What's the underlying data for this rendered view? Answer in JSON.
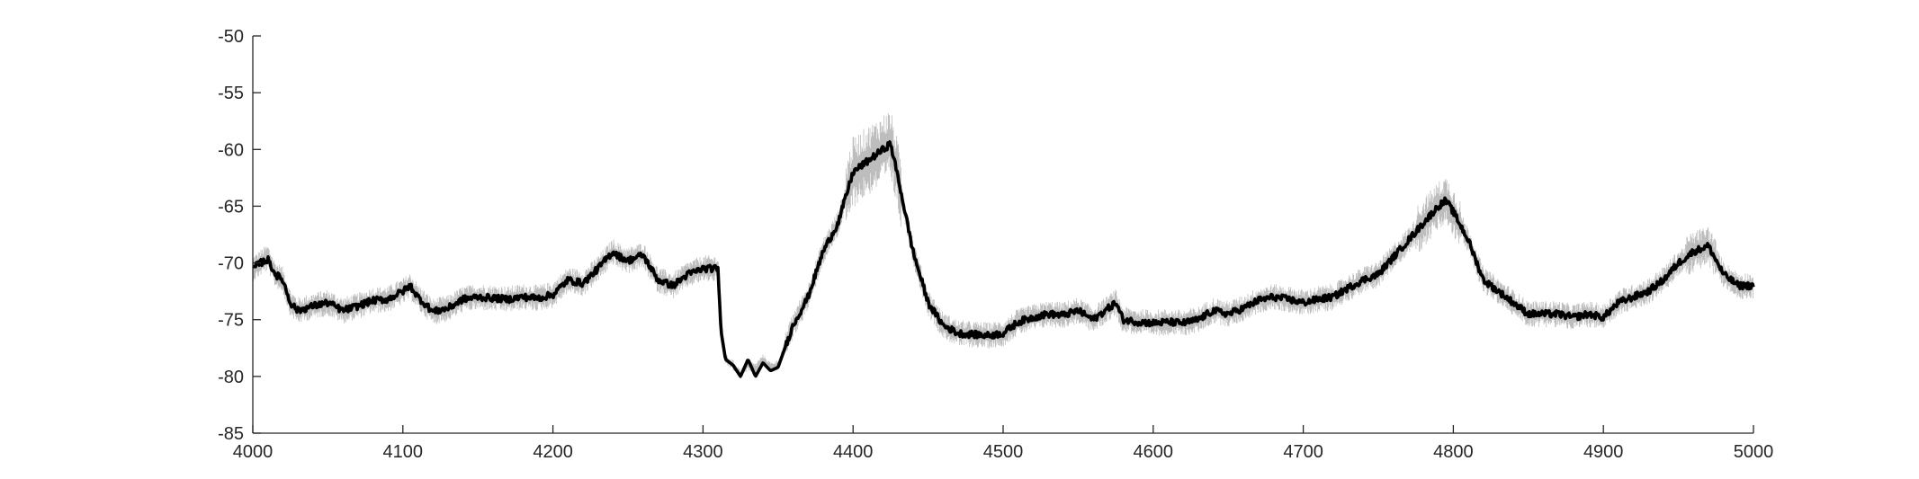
{
  "chart_data": {
    "type": "line",
    "title": "",
    "xlabel": "",
    "ylabel": "",
    "xlim": [
      4000,
      5000
    ],
    "ylim": [
      -85,
      -50
    ],
    "x_ticks": [
      4000,
      4100,
      4200,
      4300,
      4400,
      4500,
      4600,
      4700,
      4800,
      4900,
      5000
    ],
    "y_ticks": [
      -50,
      -55,
      -60,
      -65,
      -70,
      -75,
      -80,
      -85
    ],
    "x_tick_labels": [
      "4000",
      "4100",
      "4200",
      "4300",
      "4400",
      "4500",
      "4600",
      "4700",
      "4800",
      "4900",
      "5000"
    ],
    "y_tick_labels": [
      "-50",
      "-55",
      "-60",
      "-65",
      "-70",
      "-75",
      "-80",
      "-85"
    ],
    "grid": false,
    "series": [
      {
        "role": "raw",
        "color": "#bdbdbd",
        "x": [
          4000,
          4005,
          4010,
          4015,
          4020,
          4025,
          4030,
          4040,
          4050,
          4060,
          4070,
          4080,
          4090,
          4100,
          4105,
          4110,
          4120,
          4130,
          4140,
          4150,
          4160,
          4170,
          4180,
          4190,
          4200,
          4210,
          4220,
          4230,
          4240,
          4245,
          4250,
          4260,
          4270,
          4280,
          4290,
          4300,
          4310,
          4312,
          4315,
          4320,
          4325,
          4330,
          4335,
          4340,
          4345,
          4350,
          4360,
          4370,
          4380,
          4390,
          4400,
          4410,
          4420,
          4425,
          4430,
          4440,
          4450,
          4460,
          4470,
          4480,
          4490,
          4500,
          4510,
          4520,
          4530,
          4540,
          4550,
          4560,
          4570,
          4575,
          4580,
          4590,
          4600,
          4610,
          4620,
          4630,
          4640,
          4650,
          4660,
          4670,
          4680,
          4690,
          4700,
          4710,
          4720,
          4730,
          4740,
          4750,
          4760,
          4770,
          4780,
          4790,
          4795,
          4800,
          4810,
          4820,
          4830,
          4840,
          4850,
          4860,
          4870,
          4880,
          4890,
          4900,
          4910,
          4920,
          4930,
          4940,
          4950,
          4960,
          4970,
          4980,
          4990,
          5000
        ],
        "y": [
          -70.5,
          -70.0,
          -69.5,
          -71.0,
          -71.5,
          -73.5,
          -74.2,
          -73.8,
          -73.5,
          -74.2,
          -73.8,
          -73.3,
          -73.2,
          -72.5,
          -72.0,
          -73.0,
          -74.3,
          -74.0,
          -73.2,
          -73.0,
          -73.1,
          -73.2,
          -73.0,
          -73.1,
          -72.8,
          -71.5,
          -71.8,
          -70.5,
          -69.0,
          -69.5,
          -69.8,
          -69.3,
          -71.5,
          -72.0,
          -71.0,
          -70.5,
          -70.5,
          -76.0,
          -78.5,
          -79.0,
          -79.8,
          -79.0,
          -79.3,
          -78.5,
          -79.2,
          -79.0,
          -75.5,
          -73.0,
          -69.0,
          -66.5,
          -62.0,
          -61.0,
          -60.0,
          -59.5,
          -62.5,
          -69.0,
          -73.5,
          -75.5,
          -76.2,
          -76.3,
          -76.4,
          -76.2,
          -75.2,
          -74.8,
          -74.5,
          -74.6,
          -74.2,
          -75.0,
          -74.0,
          -73.5,
          -75.0,
          -75.2,
          -75.3,
          -75.2,
          -75.3,
          -75.0,
          -74.2,
          -74.5,
          -74.0,
          -73.3,
          -73.0,
          -73.2,
          -73.5,
          -73.2,
          -73.0,
          -72.2,
          -71.5,
          -71.0,
          -69.5,
          -68.0,
          -66.5,
          -65.0,
          -64.5,
          -65.5,
          -68.0,
          -71.5,
          -72.5,
          -73.5,
          -74.5,
          -74.5,
          -74.5,
          -74.8,
          -74.5,
          -74.8,
          -73.5,
          -73.0,
          -72.5,
          -71.5,
          -70.0,
          -69.0,
          -68.5,
          -71.0,
          -72.0,
          -72.0
        ]
      },
      {
        "role": "smoothed",
        "color": "#000000",
        "x": [
          4000,
          4005,
          4010,
          4015,
          4020,
          4025,
          4030,
          4040,
          4050,
          4060,
          4070,
          4080,
          4090,
          4100,
          4105,
          4110,
          4120,
          4130,
          4140,
          4150,
          4160,
          4170,
          4180,
          4190,
          4200,
          4210,
          4220,
          4230,
          4240,
          4245,
          4250,
          4260,
          4270,
          4280,
          4290,
          4300,
          4310,
          4312,
          4315,
          4320,
          4325,
          4330,
          4335,
          4340,
          4345,
          4350,
          4360,
          4370,
          4380,
          4390,
          4400,
          4410,
          4420,
          4425,
          4430,
          4440,
          4450,
          4460,
          4470,
          4480,
          4490,
          4500,
          4510,
          4520,
          4530,
          4540,
          4550,
          4560,
          4570,
          4575,
          4580,
          4590,
          4600,
          4610,
          4620,
          4630,
          4640,
          4650,
          4660,
          4670,
          4680,
          4690,
          4700,
          4710,
          4720,
          4730,
          4740,
          4750,
          4760,
          4770,
          4780,
          4790,
          4795,
          4800,
          4810,
          4820,
          4830,
          4840,
          4850,
          4860,
          4870,
          4880,
          4890,
          4900,
          4910,
          4920,
          4930,
          4940,
          4950,
          4960,
          4970,
          4980,
          4990,
          5000
        ],
        "y": [
          -70.5,
          -70.0,
          -69.7,
          -71.0,
          -71.5,
          -73.5,
          -74.2,
          -73.8,
          -73.5,
          -74.2,
          -73.8,
          -73.3,
          -73.2,
          -72.5,
          -72.0,
          -73.0,
          -74.3,
          -74.0,
          -73.2,
          -73.0,
          -73.1,
          -73.2,
          -73.0,
          -73.1,
          -72.8,
          -71.5,
          -71.8,
          -70.5,
          -69.0,
          -69.5,
          -69.8,
          -69.3,
          -71.5,
          -72.0,
          -71.0,
          -70.5,
          -70.5,
          -76.0,
          -78.5,
          -79.0,
          -80.0,
          -78.5,
          -80.0,
          -78.8,
          -79.5,
          -79.2,
          -75.5,
          -73.0,
          -69.0,
          -66.5,
          -62.0,
          -61.0,
          -60.0,
          -59.5,
          -62.5,
          -69.0,
          -73.5,
          -75.5,
          -76.2,
          -76.3,
          -76.4,
          -76.2,
          -75.2,
          -74.8,
          -74.5,
          -74.6,
          -74.2,
          -75.0,
          -74.0,
          -73.5,
          -75.0,
          -75.2,
          -75.3,
          -75.2,
          -75.3,
          -75.0,
          -74.2,
          -74.5,
          -74.0,
          -73.3,
          -73.0,
          -73.2,
          -73.5,
          -73.2,
          -73.0,
          -72.2,
          -71.5,
          -71.0,
          -69.5,
          -68.0,
          -66.5,
          -65.0,
          -64.5,
          -65.5,
          -68.0,
          -71.5,
          -72.5,
          -73.5,
          -74.5,
          -74.5,
          -74.5,
          -74.8,
          -74.5,
          -74.8,
          -73.5,
          -73.0,
          -72.5,
          -71.5,
          -70.0,
          -69.0,
          -68.5,
          -71.0,
          -72.0,
          -72.0
        ]
      }
    ]
  }
}
